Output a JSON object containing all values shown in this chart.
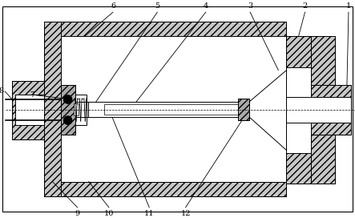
{
  "bg_color": "#ffffff",
  "hatch_density": "////",
  "lw": 0.7,
  "fig_width": 4.43,
  "fig_height": 2.72,
  "dpi": 100
}
